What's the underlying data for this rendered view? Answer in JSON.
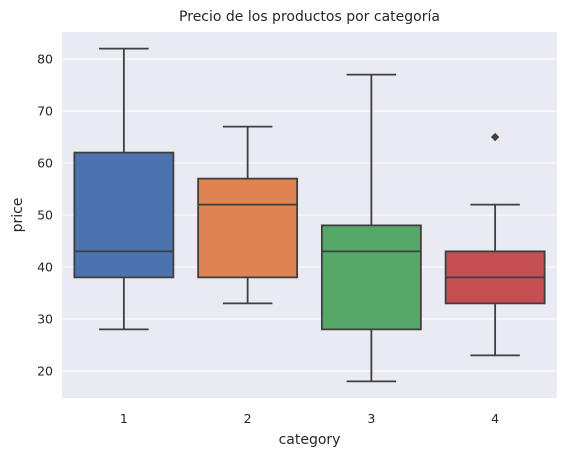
{
  "chart_data": {
    "type": "box",
    "title": "Precio de los productos por categoría",
    "xlabel": "category",
    "ylabel": "price",
    "categories": [
      "1",
      "2",
      "3",
      "4"
    ],
    "ylim": [
      14.8,
      85.2
    ],
    "yticks": [
      20,
      30,
      40,
      50,
      60,
      70,
      80
    ],
    "grid": true,
    "boxes": [
      {
        "category": "1",
        "whisker_low": 28,
        "q1": 38,
        "median": 43,
        "q3": 62,
        "whisker_high": 82,
        "outliers": [],
        "color": "#4c72b0"
      },
      {
        "category": "2",
        "whisker_low": 33,
        "q1": 38,
        "median": 52,
        "q3": 57,
        "whisker_high": 67,
        "outliers": [],
        "color": "#dd8452"
      },
      {
        "category": "3",
        "whisker_low": 18,
        "q1": 28,
        "median": 43,
        "q3": 48,
        "whisker_high": 77,
        "outliers": [],
        "color": "#55a868"
      },
      {
        "category": "4",
        "whisker_low": 23,
        "q1": 33,
        "median": 38,
        "q3": 43,
        "whisker_high": 52,
        "outliers": [
          65
        ],
        "color": "#c44e52"
      }
    ]
  },
  "colors": {
    "plot_background": "#eaeaf2",
    "grid": "#ffffff",
    "box_line": "#3f3f3f",
    "text": "#262626"
  }
}
